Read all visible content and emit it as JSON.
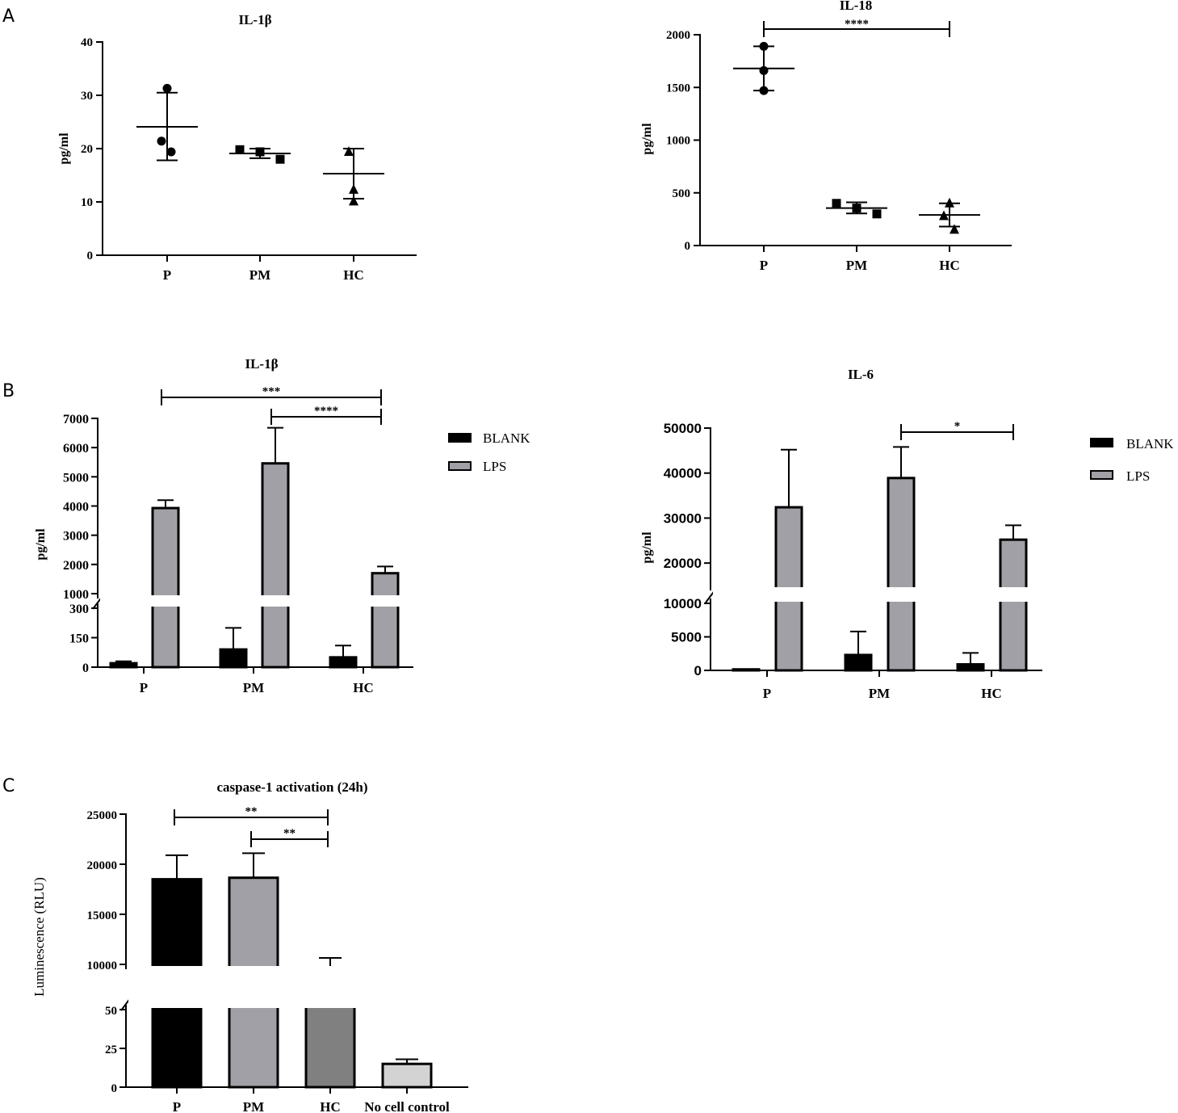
{
  "panels": [
    "A",
    "B",
    "C"
  ],
  "chart_data": [
    {
      "id": "a1",
      "type": "scatter",
      "title": "IL-1β",
      "ylabel": "pg/ml",
      "categories": [
        "P",
        "PM",
        "HC"
      ],
      "ylim": [
        0,
        40
      ],
      "yticks": [
        0,
        10,
        20,
        30,
        40
      ],
      "groups": [
        {
          "category": "P",
          "marker": "circle",
          "points": [
            31.3,
            21.4,
            19.4
          ],
          "mean": 24.1,
          "sd_low": 17.8,
          "sd_high": 30.5
        },
        {
          "category": "PM",
          "marker": "square",
          "points": [
            19.8,
            19.4,
            18.0
          ],
          "mean": 19.1,
          "sd_low": 18.2,
          "sd_high": 20.0
        },
        {
          "category": "HC",
          "marker": "triangle",
          "points": [
            19.4,
            12.3,
            10.1
          ],
          "mean": 15.3,
          "sd_low": 10.6,
          "sd_high": 20.0
        }
      ],
      "annotations": []
    },
    {
      "id": "a2",
      "type": "scatter",
      "title": "IL-18",
      "ylabel": "pg/ml",
      "categories": [
        "P",
        "PM",
        "HC"
      ],
      "ylim": [
        0,
        2000
      ],
      "yticks": [
        0,
        500,
        1000,
        1500,
        2000
      ],
      "groups": [
        {
          "category": "P",
          "marker": "circle",
          "points": [
            1890,
            1660,
            1470
          ],
          "mean": 1680,
          "sd_low": 1470,
          "sd_high": 1890
        },
        {
          "category": "PM",
          "marker": "square",
          "points": [
            400,
            355,
            300
          ],
          "mean": 355,
          "sd_low": 305,
          "sd_high": 410
        },
        {
          "category": "HC",
          "marker": "triangle",
          "points": [
            400,
            280,
            150
          ],
          "mean": 290,
          "sd_low": 180,
          "sd_high": 400
        }
      ],
      "annotations": [
        {
          "from": "P",
          "to": "HC",
          "label": "****"
        }
      ]
    },
    {
      "id": "b1",
      "type": "bar",
      "title": "IL-1β",
      "ylabel": "pg/ml",
      "categories": [
        "P",
        "PM",
        "HC"
      ],
      "yticks_lower": [
        0,
        150,
        300
      ],
      "yticks_upper": [
        1000,
        2000,
        3000,
        4000,
        5000,
        6000,
        7000
      ],
      "break": [
        300,
        1000
      ],
      "series": [
        {
          "name": "BLANK",
          "values": [
            20,
            90,
            50
          ],
          "errors": [
            10,
            110,
            60
          ]
        },
        {
          "name": "LPS",
          "values": [
            3930,
            5460,
            1700
          ],
          "errors": [
            270,
            1220,
            230
          ]
        }
      ],
      "legend": [
        "BLANK",
        "LPS"
      ],
      "annotations": [
        {
          "from": "P",
          "to": "HC",
          "label": "***"
        },
        {
          "from": "PM",
          "to": "HC",
          "label": "****"
        }
      ]
    },
    {
      "id": "b2",
      "type": "bar",
      "title": "IL-6",
      "ylabel": "pg/ml",
      "categories": [
        "P",
        "PM",
        "HC"
      ],
      "yticks_lower": [
        0,
        5000,
        10000
      ],
      "yticks_upper": [
        20000,
        30000,
        40000,
        50000
      ],
      "break": [
        10000,
        15000
      ],
      "series": [
        {
          "name": "BLANK",
          "values": [
            150,
            2300,
            900
          ],
          "errors": [
            0,
            3500,
            1700
          ]
        },
        {
          "name": "LPS",
          "values": [
            32400,
            38900,
            25200
          ],
          "errors": [
            12800,
            6900,
            3200
          ]
        }
      ],
      "legend": [
        "BLANK",
        "LPS"
      ],
      "annotations": [
        {
          "from": "PM",
          "to": "HC",
          "label": "*"
        }
      ]
    },
    {
      "id": "c",
      "type": "bar",
      "title": "caspase-1 activation (24h)",
      "ylabel": "Luminescence (RLU)",
      "categories": [
        "P",
        "PM",
        "HC",
        "No cell control"
      ],
      "yticks_lower": [
        0,
        25,
        50
      ],
      "yticks_upper": [
        10000,
        15000,
        20000,
        25000
      ],
      "break": [
        50,
        8000
      ],
      "values": [
        18500,
        18650,
        9300,
        15
      ],
      "errors": [
        2400,
        2450,
        1350,
        3
      ],
      "colors": [
        "#000000",
        "#a0a0a6",
        "#808080",
        "#d3d3d3"
      ],
      "annotations": [
        {
          "from": "P",
          "to": "HC",
          "label": "**"
        },
        {
          "from": "PM",
          "to": "HC",
          "label": "**"
        }
      ]
    }
  ]
}
